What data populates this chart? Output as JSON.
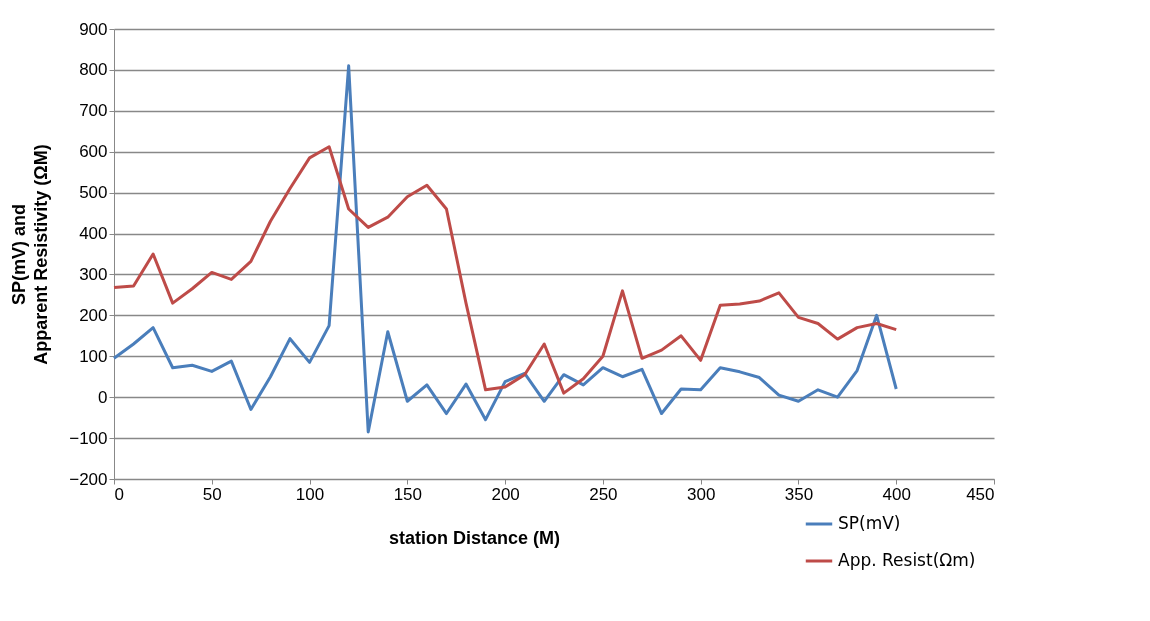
{
  "chart_data": {
    "type": "line",
    "xlabel": "station Distance (M)",
    "ylabel": "SP(mV)  and\nApparent Resistivity (ΩM)",
    "x": [
      0,
      10,
      20,
      30,
      40,
      50,
      60,
      70,
      80,
      90,
      100,
      110,
      120,
      130,
      140,
      150,
      160,
      170,
      180,
      190,
      200,
      210,
      220,
      230,
      240,
      250,
      260,
      270,
      280,
      290,
      300,
      310,
      320,
      330,
      340,
      350,
      360,
      370,
      380,
      390,
      400
    ],
    "series": [
      {
        "name": "SP(mV)",
        "color": "#4a7ebb",
        "values": [
          95,
          130,
          170,
          72,
          78,
          63,
          88,
          -30,
          50,
          143,
          85,
          175,
          810,
          -85,
          160,
          -10,
          30,
          -40,
          32,
          -55,
          38,
          58,
          -10,
          55,
          30,
          72,
          50,
          68,
          -40,
          20,
          18,
          72,
          62,
          48,
          5,
          -10,
          18,
          0,
          65,
          200,
          20
        ]
      },
      {
        "name": "App. Resist(Ωm)",
        "color": "#be4b48",
        "values": [
          268,
          272,
          350,
          230,
          265,
          305,
          288,
          332,
          430,
          510,
          585,
          612,
          460,
          415,
          440,
          490,
          518,
          460,
          230,
          18,
          25,
          55,
          130,
          10,
          45,
          100,
          260,
          95,
          115,
          150,
          90,
          225,
          228,
          235,
          255,
          195,
          180,
          142,
          170,
          180,
          165
        ]
      }
    ],
    "xlim": [
      0,
      450
    ],
    "xticks": [
      0,
      50,
      100,
      150,
      200,
      250,
      300,
      350,
      400,
      450
    ],
    "ylim": [
      -200,
      900
    ],
    "yticks": [
      -200,
      -100,
      0,
      100,
      200,
      300,
      400,
      500,
      600,
      700,
      800,
      900
    ],
    "grid": "y",
    "legend": "bottom right",
    "marker": "none",
    "line_style": "solid"
  }
}
